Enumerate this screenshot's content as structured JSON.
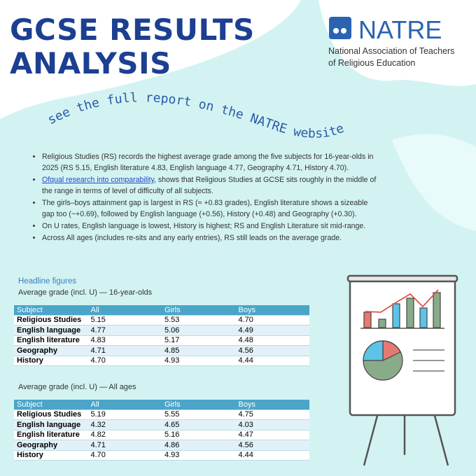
{
  "header": {
    "title_lines": [
      "GCSE RESULTS",
      "ANALYSIS"
    ],
    "logo": "NATRE",
    "org_lines": [
      "National Association of Teachers",
      "of Religious Education"
    ],
    "banner": "see the full report on the NATRE website"
  },
  "bullets": [
    {
      "text": "Religious Studies (RS) records the highest average grade among the five subjects for 16-year-olds in 2025 (RS 5.15, English literature 4.83, English language 4.77, Geography 4.71, History 4.70)."
    },
    {
      "link": "Ofqual research into comparability",
      "text": ", shows that Religious Studies at GCSE sits roughly in the middle of the range in terms of level of difficulty of all subjects."
    },
    {
      "text": "The girls–boys attainment gap is largest in RS (≈ +0.83 grades), English literature shows a sizeable gap too (~+0.69), followed by English language (+0.56), History (+0.48) and Geography (+0.30)."
    },
    {
      "text": "On U rates, English language is lowest, History is highest; RS and English Literature sit mid-range."
    },
    {
      "text": "Across All ages (includes re-sits and any early entries), RS still leads on the average grade."
    }
  ],
  "section_heading": "Headline figures",
  "tables": [
    {
      "caption": "Average grade (incl. U) — 16-year-olds",
      "columns": [
        "Subject",
        "All",
        "Girls",
        "Boys"
      ],
      "rows": [
        [
          "Religious Studies",
          "5.15",
          "5.53",
          "4.70"
        ],
        [
          "English language",
          "4.77",
          "5.06",
          "4.49"
        ],
        [
          "English literature",
          "4.83",
          "5.17",
          "4.48"
        ],
        [
          "Geography",
          "4.71",
          "4.85",
          "4.56"
        ],
        [
          "History",
          "4.70",
          "4.93",
          "4.44"
        ]
      ]
    },
    {
      "caption": "Average grade (incl. U) — All ages",
      "columns": [
        "Subject",
        "All",
        "Girls",
        "Boys"
      ],
      "rows": [
        [
          "Religious Studies",
          "5.19",
          "5.55",
          "4.75"
        ],
        [
          "English language",
          "4.32",
          "4.65",
          "4.03"
        ],
        [
          "English literature",
          "4.82",
          "5.16",
          "4.47"
        ],
        [
          "Geography",
          "4.71",
          "4.86",
          "4.56"
        ],
        [
          "History",
          "4.70",
          "4.93",
          "4.44"
        ]
      ]
    }
  ]
}
